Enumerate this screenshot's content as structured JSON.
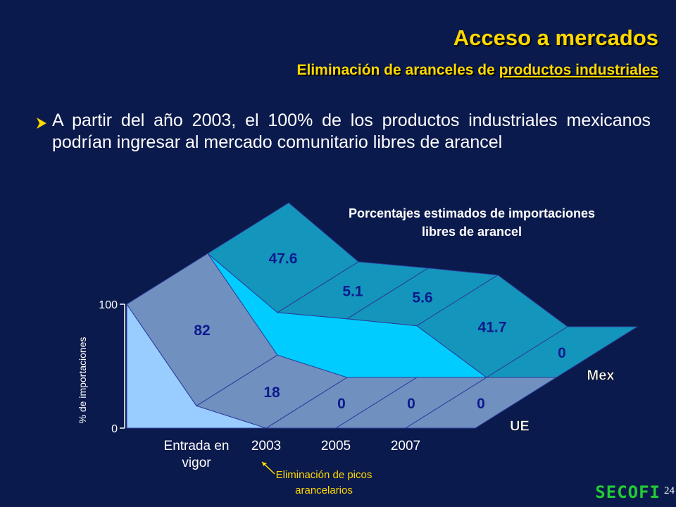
{
  "header": {
    "title": "Acceso a mercados",
    "subtitle": "Eliminación de aranceles de",
    "subtitle_underlined": "productos industriales"
  },
  "bullet": "A partir del año 2003, el 100% de los productos industriales mexicanos podrían ingresar al mercado comunitario libres de arancel",
  "chart_data": {
    "type": "area3d",
    "title": "Porcentajes estimados de importaciones libres de arancel",
    "y_label": "% de importaciones",
    "categories": [
      "Entrada en vigor",
      "2003",
      "2005",
      "2007",
      null
    ],
    "series": [
      {
        "name": "UE",
        "color": "#7090c0",
        "face_color": "#99ccff",
        "values": [
          82,
          18,
          0,
          0,
          0
        ]
      },
      {
        "name": "Mex",
        "color": "#1496bc",
        "face_color": "#00ccff",
        "values": [
          47.6,
          5.1,
          5.6,
          41.7,
          0
        ]
      }
    ],
    "ylim": [
      0,
      100
    ],
    "yticks": [
      0,
      100
    ],
    "annotation": "Eliminación de picos arancelarios"
  },
  "footer": {
    "logo": "SECOFI",
    "page": "24"
  }
}
